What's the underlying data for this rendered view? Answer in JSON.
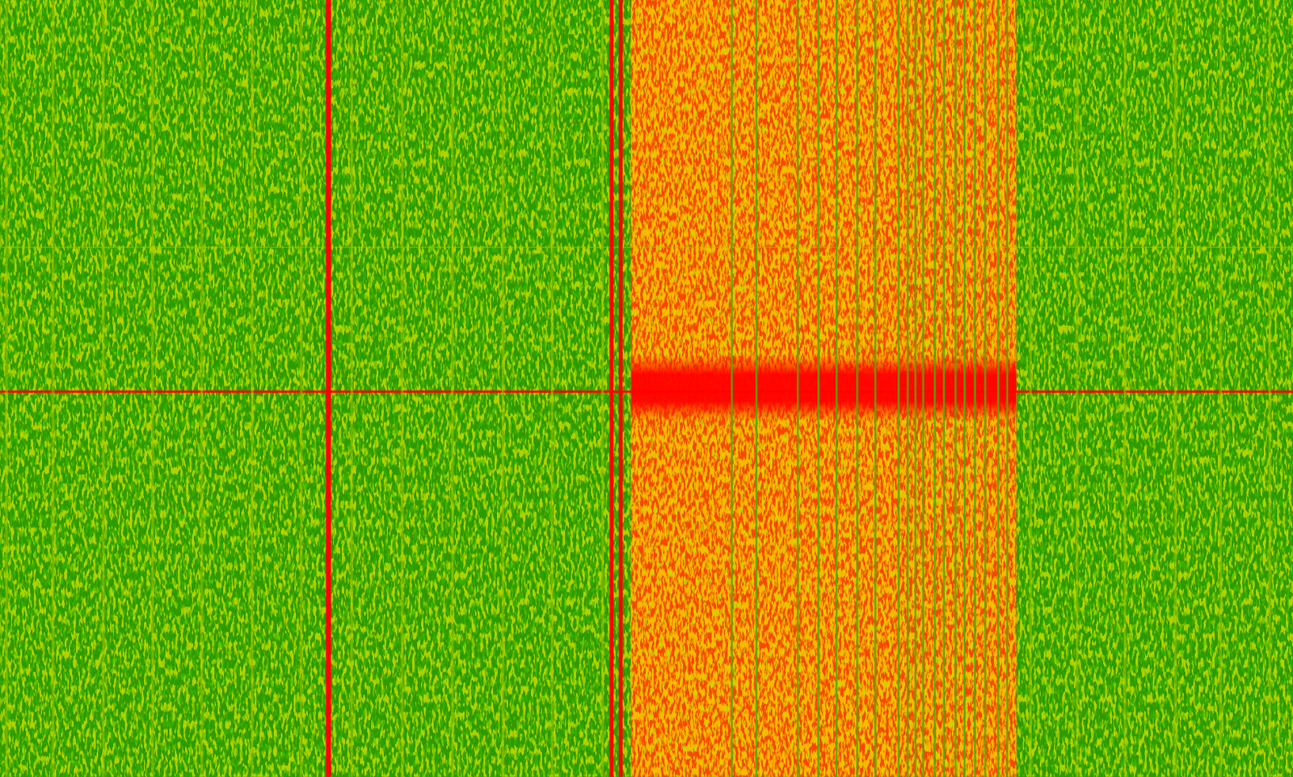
{
  "chart_data": {
    "type": "spectrogram",
    "tick_labels": false,
    "xlim": [
      0,
      1000
    ],
    "ylim": [
      0,
      600
    ],
    "noise_floor": 0.3,
    "colorscale": {
      "values": [
        0.3,
        0.5,
        0.75,
        1
      ],
      "colors": [
        "#2e9a00",
        "#c8d400",
        "#f07800",
        "#ff0000"
      ]
    },
    "bands": [
      {
        "x0": 488,
        "x1": 786,
        "level": 0.85
      }
    ],
    "bursts": [
      {
        "x0": 488,
        "x1": 786,
        "y0": 274,
        "y1": 325,
        "level": 1
      }
    ],
    "rows": [
      {
        "y": 302.5,
        "level": 1
      },
      {
        "y": 191,
        "level": 0.45
      }
    ],
    "carriers": [
      {
        "x": 5,
        "width": 2,
        "level": 0.45
      },
      {
        "x": 41,
        "width": 2,
        "level": 0.45
      },
      {
        "x": 80,
        "width": 2,
        "level": 0.45
      },
      {
        "x": 118,
        "width": 2,
        "level": 0.45
      },
      {
        "x": 156,
        "width": 2,
        "level": 0.45
      },
      {
        "x": 195,
        "width": 2,
        "level": 0.45
      },
      {
        "x": 233,
        "width": 2,
        "level": 0.45
      },
      {
        "x": 254,
        "width": 4,
        "level": 1
      },
      {
        "x": 272,
        "width": 2,
        "level": 0.45
      },
      {
        "x": 311,
        "width": 2,
        "level": 0.45
      },
      {
        "x": 350,
        "width": 2,
        "level": 0.45
      },
      {
        "x": 389,
        "width": 2,
        "level": 0.45
      },
      {
        "x": 427,
        "width": 2,
        "level": 0.45
      },
      {
        "x": 466,
        "width": 2,
        "level": 0.45
      },
      {
        "x": 473,
        "width": 3,
        "level": 1
      },
      {
        "x": 480,
        "width": 3,
        "level": 1
      },
      {
        "x": 566,
        "width": 1.5,
        "level": 0.35
      },
      {
        "x": 585,
        "width": 1.5,
        "level": 0.35
      },
      {
        "x": 617,
        "width": 1.5,
        "level": 0.35
      },
      {
        "x": 633,
        "width": 1.5,
        "level": 0.35
      },
      {
        "x": 647,
        "width": 1.5,
        "level": 0.35
      },
      {
        "x": 663,
        "width": 1.5,
        "level": 0.35
      },
      {
        "x": 677,
        "width": 1.5,
        "level": 0.35
      },
      {
        "x": 695,
        "width": 1.5,
        "level": 0.35
      },
      {
        "x": 702,
        "width": 1.5,
        "level": 0.35
      },
      {
        "x": 708,
        "width": 1.5,
        "level": 0.35
      },
      {
        "x": 714,
        "width": 1.5,
        "level": 0.35
      },
      {
        "x": 723,
        "width": 1.5,
        "level": 0.35
      },
      {
        "x": 730,
        "width": 1.5,
        "level": 0.35
      },
      {
        "x": 739,
        "width": 1.5,
        "level": 0.35
      },
      {
        "x": 746,
        "width": 1.5,
        "level": 0.35
      },
      {
        "x": 754,
        "width": 1.5,
        "level": 0.35
      },
      {
        "x": 762,
        "width": 1.5,
        "level": 0.35
      },
      {
        "x": 772,
        "width": 1.5,
        "level": 0.35
      },
      {
        "x": 779,
        "width": 1.5,
        "level": 0.35
      },
      {
        "x": 797,
        "width": 2,
        "level": 0.45
      },
      {
        "x": 833,
        "width": 2,
        "level": 0.45
      },
      {
        "x": 870,
        "width": 2,
        "level": 0.45
      },
      {
        "x": 909,
        "width": 2,
        "level": 0.45
      },
      {
        "x": 944,
        "width": 2,
        "level": 0.45
      },
      {
        "x": 982,
        "width": 2,
        "level": 0.45
      }
    ]
  }
}
